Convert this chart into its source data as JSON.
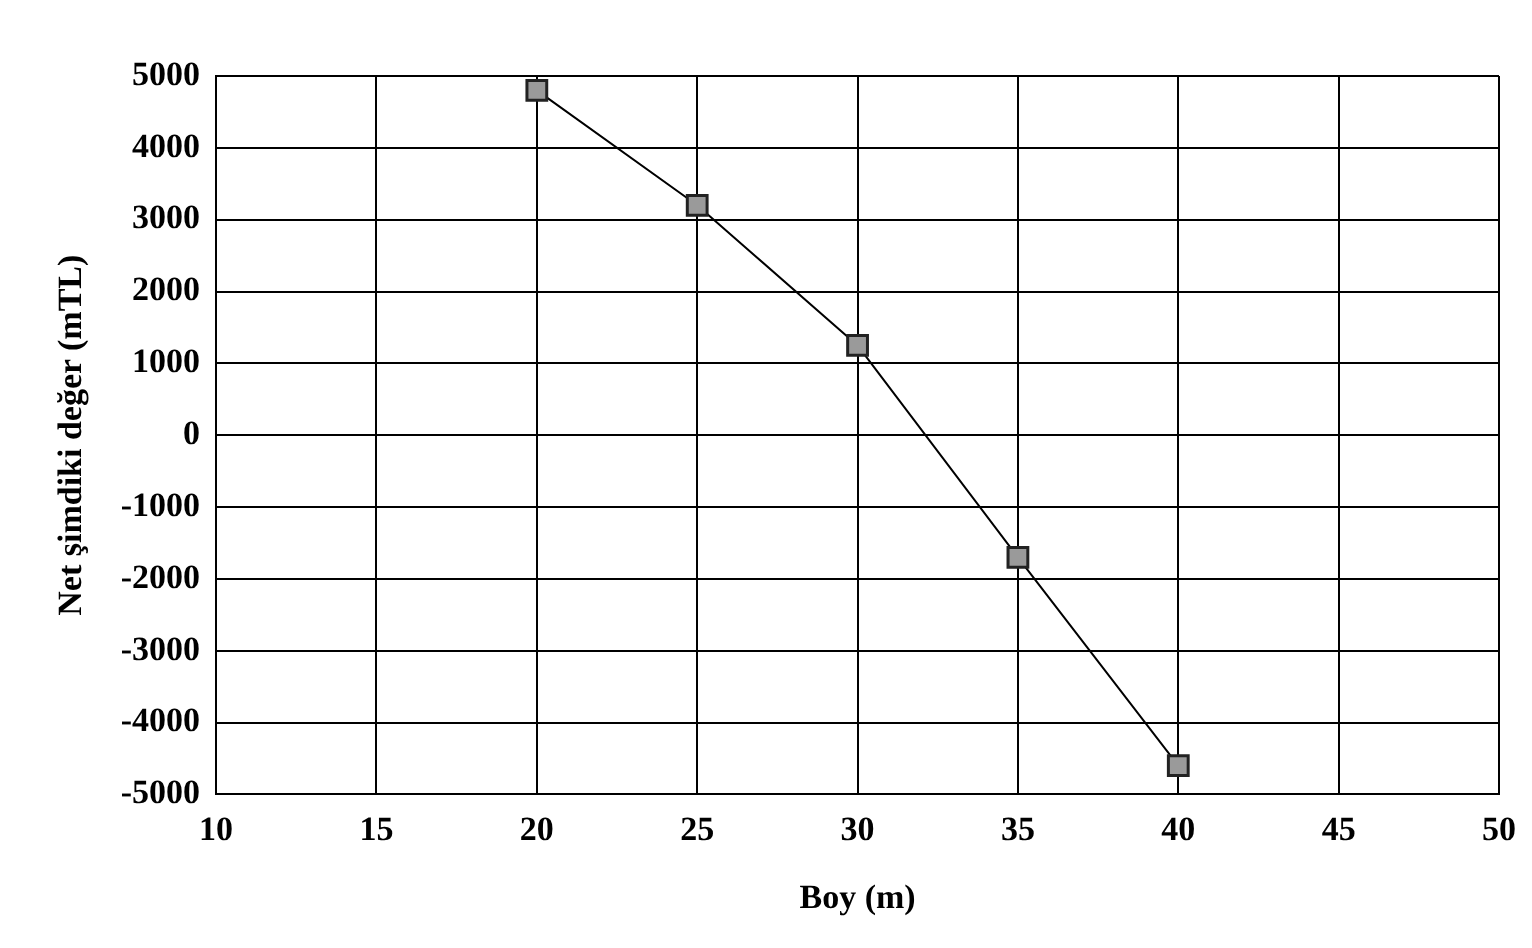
{
  "chart_data": {
    "type": "line",
    "xlabel": "Boy (m)",
    "ylabel": "Net şimdiki değer (mTL)",
    "x": [
      20,
      25,
      30,
      35,
      40
    ],
    "series": [
      {
        "color": "#000000",
        "values": [
          4800,
          3200,
          1250,
          -1700,
          -4600
        ]
      }
    ],
    "xlim": [
      10,
      50
    ],
    "xticks": [
      10,
      15,
      20,
      25,
      30,
      35,
      40,
      45,
      50
    ],
    "ylim": [
      -5000,
      5000
    ],
    "yticks": [
      -5000,
      -4000,
      -3000,
      -2000,
      -1000,
      0,
      1000,
      2000,
      3000,
      4000,
      5000
    ],
    "grid": true,
    "legend": false,
    "marker": "square",
    "line_style": "solid"
  }
}
